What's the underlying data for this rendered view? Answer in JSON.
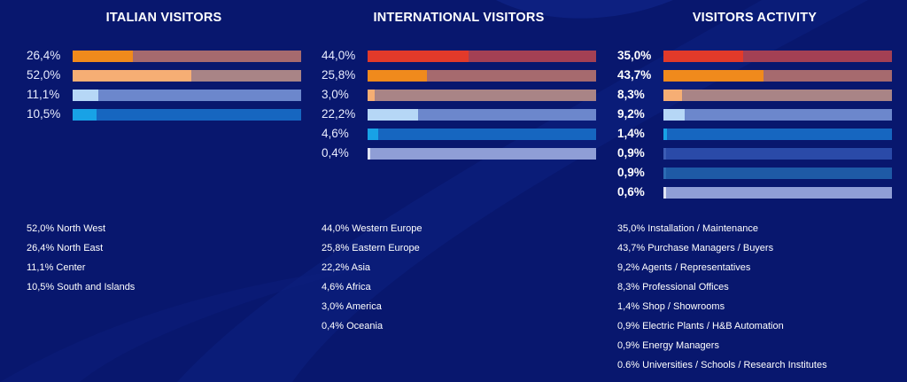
{
  "chart_data": [
    {
      "type": "bar",
      "title": "ITALIAN VISITORS",
      "orientation": "horizontal",
      "xlim": [
        0,
        100
      ],
      "values": [
        26.4,
        52.0,
        11.1,
        10.5
      ],
      "value_labels": [
        "26,4%",
        "52,0%",
        "11,1%",
        "10,5%"
      ],
      "colors": [
        {
          "fill": "#f08a1c",
          "track": "#a66a6e"
        },
        {
          "fill": "#f6ae74",
          "track": "#a98486"
        },
        {
          "fill": "#b6d7f6",
          "track": "#6c87cc"
        },
        {
          "fill": "#18a2e6",
          "track": "#1666c0"
        }
      ],
      "legend": [
        "52,0% North West",
        "26,4% North East",
        "11,1% Center",
        "10,5% South and Islands"
      ]
    },
    {
      "type": "bar",
      "title": "INTERNATIONAL VISITORS",
      "orientation": "horizontal",
      "xlim": [
        0,
        100
      ],
      "values": [
        44.0,
        25.8,
        3.0,
        22.2,
        4.6,
        0.4
      ],
      "value_labels": [
        "44,0%",
        "25,8%",
        "3,0%",
        "22,2%",
        "4,6%",
        "0,4%"
      ],
      "colors": [
        {
          "fill": "#e23a2a",
          "track": "#a34054"
        },
        {
          "fill": "#f08a1c",
          "track": "#a66a6e"
        },
        {
          "fill": "#f6ae74",
          "track": "#a98486"
        },
        {
          "fill": "#b6d7f6",
          "track": "#6c87cc"
        },
        {
          "fill": "#18a2e6",
          "track": "#1666c0"
        },
        {
          "fill": "#e0e4f4",
          "track": "#8f9ed6"
        }
      ],
      "legend": [
        "44,0% Western Europe",
        "25,8% Eastern Europe",
        "22,2% Asia",
        "4,6% Africa",
        "3,0% America",
        "0,4% Oceania"
      ]
    },
    {
      "type": "bar",
      "title": "VISITORS ACTIVITY",
      "orientation": "horizontal",
      "xlim": [
        0,
        100
      ],
      "values": [
        35.0,
        43.7,
        8.3,
        9.2,
        1.4,
        0.9,
        0.9,
        0.6
      ],
      "value_labels": [
        "35,0%",
        "43,7%",
        "8,3%",
        "9,2%",
        "1,4%",
        "0,9%",
        "0,9%",
        "0,6%"
      ],
      "colors": [
        {
          "fill": "#e23a2a",
          "track": "#a34054"
        },
        {
          "fill": "#f08a1c",
          "track": "#a66a6e"
        },
        {
          "fill": "#f6ae74",
          "track": "#a98486"
        },
        {
          "fill": "#b6d7f6",
          "track": "#6c87cc"
        },
        {
          "fill": "#18a2e6",
          "track": "#1666c0"
        },
        {
          "fill": "#3c5cb4",
          "track": "#2a4aa8"
        },
        {
          "fill": "#2c6cb4",
          "track": "#1e5aa6"
        },
        {
          "fill": "#e0e4f4",
          "track": "#8f9ed6"
        }
      ],
      "legend": [
        "35,0% Installation / Maintenance",
        "43,7% Purchase Managers / Buyers",
        "9,2% Agents / Representatives",
        "8,3% Professional Offices",
        "1,4% Shop / Showrooms",
        "0,9% Electric Plants / H&B Automation",
        "0,9% Energy Managers",
        "0.6% Universities / Schools / Research Institutes"
      ]
    }
  ]
}
